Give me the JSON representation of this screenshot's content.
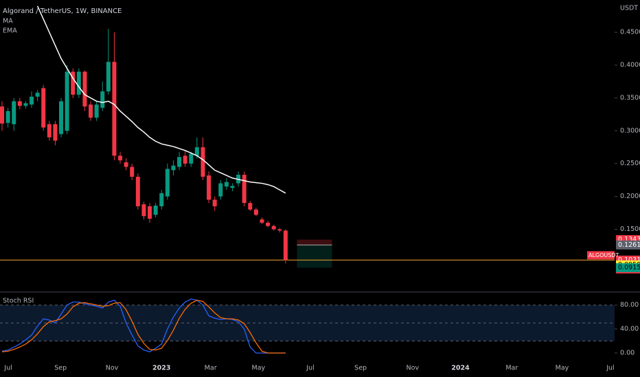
{
  "chart_data": [
    {
      "type": "candlestick",
      "title": "Algorand / TetherUS, 1W, BINANCE",
      "indicator_labels": [
        "MA"
      ],
      "axis_title": "USDT",
      "up_color": "#089981",
      "down_color": "#f23645",
      "open": [
        0.337,
        0.312,
        0.31,
        0.345,
        0.338,
        0.34,
        0.352,
        0.365,
        0.31,
        0.31,
        0.295,
        0.3,
        0.39,
        0.355,
        0.39,
        0.34,
        0.32,
        0.335,
        0.36,
        0.405,
        0.262,
        0.252,
        0.245,
        0.23,
        0.188,
        0.185,
        0.172,
        0.185,
        0.2,
        0.24,
        0.245,
        0.262,
        0.25,
        0.262,
        0.275,
        0.232,
        0.195,
        0.2,
        0.215,
        0.213,
        0.22,
        0.233,
        0.19,
        0.18,
        0.165,
        0.16,
        0.155,
        0.15,
        0.148
      ],
      "high": [
        0.345,
        0.335,
        0.35,
        0.35,
        0.345,
        0.36,
        0.362,
        0.37,
        0.315,
        0.315,
        0.35,
        0.4,
        0.395,
        0.395,
        0.392,
        0.345,
        0.345,
        0.375,
        0.455,
        0.45,
        0.268,
        0.258,
        0.25,
        0.235,
        0.192,
        0.19,
        0.19,
        0.21,
        0.25,
        0.255,
        0.268,
        0.27,
        0.268,
        0.29,
        0.29,
        0.238,
        0.2,
        0.225,
        0.228,
        0.22,
        0.238,
        0.238,
        0.193,
        0.183,
        0.168,
        0.163,
        0.157,
        0.152,
        0.15
      ],
      "low": [
        0.3,
        0.305,
        0.3,
        0.333,
        0.334,
        0.335,
        0.345,
        0.3,
        0.285,
        0.278,
        0.29,
        0.295,
        0.35,
        0.35,
        0.33,
        0.315,
        0.315,
        0.33,
        0.355,
        0.255,
        0.25,
        0.24,
        0.225,
        0.18,
        0.165,
        0.16,
        0.168,
        0.18,
        0.195,
        0.232,
        0.24,
        0.245,
        0.245,
        0.258,
        0.225,
        0.19,
        0.178,
        0.195,
        0.21,
        0.208,
        0.215,
        0.185,
        0.178,
        0.17,
        0.158,
        0.153,
        0.148,
        0.145,
        0.098
      ],
      "close": [
        0.311,
        0.33,
        0.345,
        0.338,
        0.342,
        0.352,
        0.358,
        0.305,
        0.29,
        0.285,
        0.345,
        0.39,
        0.355,
        0.39,
        0.337,
        0.32,
        0.34,
        0.36,
        0.405,
        0.262,
        0.255,
        0.245,
        0.23,
        0.185,
        0.17,
        0.166,
        0.186,
        0.205,
        0.242,
        0.247,
        0.26,
        0.25,
        0.265,
        0.275,
        0.23,
        0.195,
        0.185,
        0.22,
        0.222,
        0.216,
        0.233,
        0.19,
        0.18,
        0.172,
        0.16,
        0.155,
        0.15,
        0.148,
        0.1031
      ],
      "ema": {
        "name": "EMA",
        "color": "#ffffff",
        "values": [
          null,
          null,
          null,
          null,
          null,
          null,
          0.49,
          0.47,
          0.45,
          0.43,
          0.41,
          0.395,
          0.38,
          0.367,
          0.355,
          0.35,
          0.345,
          0.343,
          0.345,
          0.34,
          0.33,
          0.322,
          0.314,
          0.305,
          0.298,
          0.29,
          0.284,
          0.28,
          0.278,
          0.276,
          0.273,
          0.27,
          0.266,
          0.262,
          0.256,
          0.248,
          0.24,
          0.236,
          0.232,
          0.228,
          0.226,
          0.224,
          0.222,
          0.221,
          0.22,
          0.218,
          0.215,
          0.21,
          0.205
        ]
      },
      "ylim": [
        0.0555,
        0.4992
      ],
      "yticks": [
        {
          "value": 0.15,
          "label": "0.1500"
        },
        {
          "value": 0.2,
          "label": "0.2000"
        },
        {
          "value": 0.25,
          "label": "0.2500"
        },
        {
          "value": 0.3,
          "label": "0.3000"
        },
        {
          "value": 0.35,
          "label": "0.3500"
        },
        {
          "value": 0.4,
          "label": "0.4000"
        },
        {
          "value": 0.45,
          "label": "0.4500"
        }
      ],
      "xlim": [
        -0.35,
        103.7
      ],
      "xticks": [
        {
          "value": 1.05,
          "label": "Jul"
        },
        {
          "value": 9.9,
          "label": "Sep"
        },
        {
          "value": 18.6,
          "label": "Nov"
        },
        {
          "value": 27,
          "label": "2023"
        },
        {
          "value": 35.3,
          "label": "Mar"
        },
        {
          "value": 43.4,
          "label": "May"
        },
        {
          "value": 52.2,
          "label": "Jul"
        },
        {
          "value": 60.7,
          "label": "Sep"
        },
        {
          "value": 69.5,
          "label": "Nov"
        },
        {
          "value": 77.6,
          "label": "2024"
        },
        {
          "value": 86.3,
          "label": "Mar"
        },
        {
          "value": 94.8,
          "label": "May"
        },
        {
          "value": 103,
          "label": "Jul"
        }
      ],
      "last_price": {
        "symbol": "ALGOUSDT",
        "value": 0.1031,
        "countdown": "1d 17h",
        "color": "#f23645",
        "line_color": "#f0a030"
      },
      "position": {
        "stop": 0.1343,
        "entry": 0.1261,
        "target": 0.0915,
        "stop_color": "#f23645",
        "entry_color": "#5d606b",
        "target_color": "#089981"
      },
      "price_labels": [
        {
          "value": 0.0958,
          "color": "#ffeb3b"
        }
      ]
    },
    {
      "type": "line",
      "title": "Stoch RSI",
      "series": [
        {
          "color": "#2962ff",
          "values": [
            3,
            5,
            10,
            15,
            22,
            30,
            45,
            57,
            55,
            50,
            65,
            80,
            85,
            85,
            82,
            80,
            78,
            75,
            85,
            88,
            78,
            50,
            30,
            12,
            5,
            2,
            8,
            15,
            40,
            60,
            75,
            85,
            90,
            88,
            80,
            62,
            58,
            56,
            57,
            56,
            52,
            40,
            10,
            0,
            0,
            0,
            0,
            0,
            0
          ]
        },
        {
          "color": "#ff6d00",
          "values": [
            2,
            3,
            6,
            10,
            15,
            22,
            32,
            44,
            52,
            54,
            57,
            65,
            77,
            83,
            84,
            82,
            80,
            78,
            79,
            83,
            84,
            72,
            53,
            31,
            16,
            6,
            5,
            8,
            21,
            38,
            58,
            73,
            83,
            88,
            86,
            77,
            67,
            59,
            57,
            57,
            55,
            49,
            34,
            17,
            3,
            0,
            0,
            0,
            0
          ]
        }
      ],
      "levels": [
        80,
        50,
        20
      ],
      "ylim": [
        -11.4,
        100.6
      ],
      "yticks": [
        {
          "value": 0,
          "label": "0.00"
        },
        {
          "value": 40,
          "label": "40.00"
        },
        {
          "value": 80,
          "label": "80.00"
        }
      ]
    }
  ]
}
